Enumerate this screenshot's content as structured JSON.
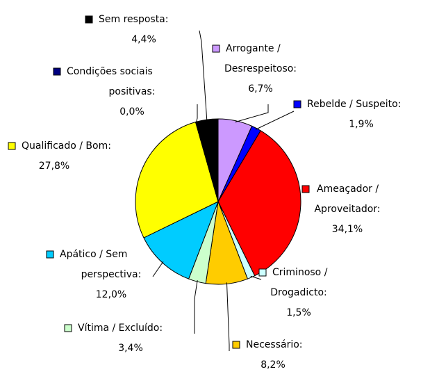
{
  "chart_data": {
    "type": "pie",
    "categories": [
      "Arrogante / Desrespeitoso:",
      "Rebelde / Suspeito:",
      "Ameaçador / Aproveitador:",
      "Criminoso / Drogadicto:",
      "Necessário:",
      "Vítima / Excluído:",
      "Apático / Sem perspectiva:",
      "Qualificado / Bom:",
      "Condições sociais positivas:",
      "Sem resposta:"
    ],
    "values": [
      6.7,
      1.9,
      34.1,
      1.5,
      8.2,
      3.4,
      12.0,
      27.8,
      0.0,
      4.4
    ],
    "value_labels": [
      "6,7%",
      "1,9%",
      "34,1%",
      "1,5%",
      "8,2%",
      "3,4%",
      "12,0%",
      "27,8%",
      "0,0%",
      "4,4%"
    ],
    "colors": [
      "#cc99ff",
      "#0000ff",
      "#ff0000",
      "#ccffff",
      "#ffcc00",
      "#ccffcc",
      "#00ccff",
      "#ffff00",
      "#000080",
      "#000000"
    ]
  }
}
